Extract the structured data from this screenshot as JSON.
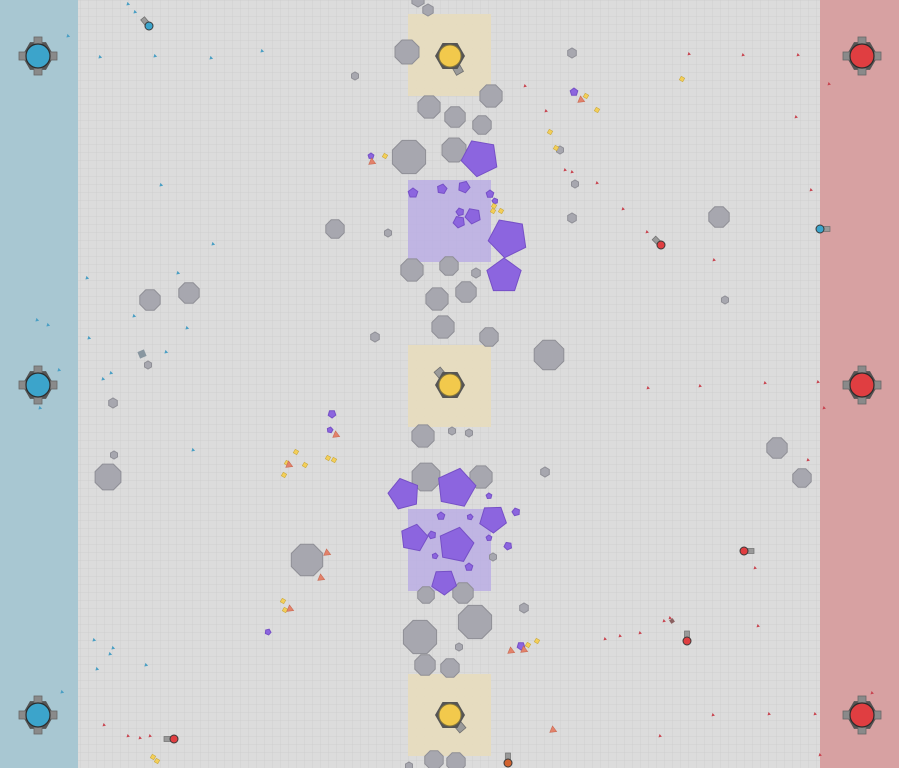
{
  "game": {
    "colors": {
      "background": "#cdcdcd",
      "grid_line": "#c4c4c4",
      "blue_base": "#a8c7d2",
      "red_base": "#d7a1a2",
      "blue_team": "#3ca4cb",
      "red_team": "#e03e41",
      "dominator_body": "#555555",
      "neutral_dominator": "#f2c94c",
      "dominator_zone": "#e7dcbc",
      "pentagon_nest": "#b7a8e6",
      "polygon": "#a7a7af",
      "pentagon": "#8c65df",
      "square": "#f4cf58",
      "triangle": "#e3826a",
      "bullet_blue": "#4a9fc4",
      "bullet_red": "#c8434f"
    },
    "bases": [
      {
        "team": "blue",
        "dominators": 3
      },
      {
        "team": "red",
        "dominators": 3
      }
    ],
    "dominators": [
      {
        "id": "top",
        "team": "neutral",
        "icon": "hexagon-dominator-icon"
      },
      {
        "id": "middle",
        "team": "neutral",
        "icon": "hexagon-dominator-icon"
      },
      {
        "id": "bottom",
        "team": "neutral",
        "icon": "hexagon-dominator-icon"
      }
    ],
    "nests": [
      {
        "id": "upper-nest",
        "contents": "pentagons"
      },
      {
        "id": "lower-nest",
        "contents": "pentagons"
      }
    ],
    "map_mode": "domination"
  }
}
